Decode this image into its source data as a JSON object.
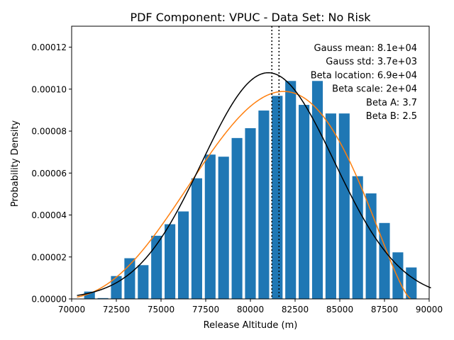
{
  "chart_data": {
    "type": "bar",
    "title": "PDF Component: VPUC - Data Set: No Risk",
    "xlabel": "Release Altitude (m)",
    "ylabel": "Probability Density",
    "xlim": [
      70000,
      90000
    ],
    "ylim": [
      0,
      0.00013
    ],
    "xticks": [
      70000,
      72500,
      75000,
      77500,
      80000,
      82500,
      85000,
      87500,
      90000
    ],
    "xtick_labels": [
      "70000",
      "72500",
      "75000",
      "77500",
      "80000",
      "82500",
      "85000",
      "87500",
      "90000"
    ],
    "yticks": [
      0,
      2e-05,
      4e-05,
      6e-05,
      8e-05,
      0.0001,
      0.00012
    ],
    "ytick_labels": [
      "0.00000",
      "0.00002",
      "0.00004",
      "0.00006",
      "0.00008",
      "0.00010",
      "0.00012"
    ],
    "bar_width": 600,
    "histogram": {
      "x": [
        71000,
        71750,
        72500,
        73250,
        74000,
        74750,
        75500,
        76250,
        77000,
        77750,
        78500,
        79250,
        80000,
        80750,
        81500,
        82250,
        83000,
        83750,
        84500,
        85250,
        86000,
        86750,
        87500,
        88250,
        89000
      ],
      "values": [
        3.5e-06,
        4e-07,
        1.09e-05,
        1.94e-05,
        1.61e-05,
        3.01e-05,
        3.56e-05,
        4.17e-05,
        5.75e-05,
        6.88e-05,
        6.78e-05,
        7.67e-05,
        8.14e-05,
        8.98e-05,
        9.68e-05,
        0.0001039,
        9.25e-05,
        0.0001039,
        8.84e-05,
        8.84e-05,
        5.85e-05,
        5.03e-05,
        3.62e-05,
        2.22e-05,
        1.5e-05
      ]
    },
    "gauss_mean": 81000,
    "gauss_std": 3700,
    "beta_location": 69000,
    "beta_scale": 20000,
    "beta_a": 3.7,
    "beta_b": 2.5,
    "vlines": [
      81200,
      81600
    ],
    "annotations": [
      "Gauss mean: 8.1e+04",
      "Gauss std: 3.7e+03",
      "Beta location: 6.9e+04",
      "Beta scale: 2e+04",
      "Beta A: 3.7",
      "Beta B: 2.5"
    ],
    "colors": {
      "bars": "#1f77b4",
      "gauss": "#000000",
      "beta": "#ff7f0e"
    }
  }
}
